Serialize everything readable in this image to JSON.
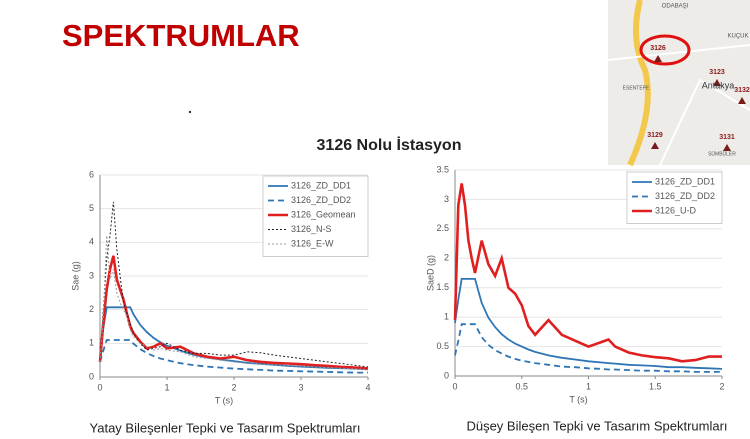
{
  "slide_title": "SPEKTRUMLAR",
  "station_title": "3126 Nolu İstasyon",
  "captions": [
    "Yatay Bileşenler Tepki ve Tasarım Spektrumları",
    "Düşey Bileşen Tepki ve Tasarım Spektrumları"
  ],
  "map": {
    "labels": [
      "ODABAŞI",
      "KUÇUK",
      "3126",
      "3123",
      "Antakya",
      "3132",
      "ESENTEPE",
      "3129",
      "3131",
      "SÜMBÜLER"
    ]
  },
  "chart_data": [
    {
      "type": "line",
      "xlabel": "T (s)",
      "ylabel": "Sae (g)",
      "xlim": [
        0,
        4
      ],
      "xticks": [
        0,
        1,
        2,
        3,
        4
      ],
      "ylim": [
        0,
        6
      ],
      "yticks": [
        0,
        1,
        2,
        3,
        4,
        5,
        6
      ],
      "grid": true,
      "legend": "upper right",
      "x": [
        0,
        0.05,
        0.1,
        0.15,
        0.2,
        0.25,
        0.3,
        0.35,
        0.4,
        0.45,
        0.5,
        0.6,
        0.7,
        0.8,
        0.9,
        1.0,
        1.2,
        1.4,
        1.6,
        1.8,
        2.0,
        2.2,
        2.4,
        2.6,
        2.8,
        3.0,
        3.2,
        3.4,
        3.6,
        3.8,
        4.0
      ],
      "series": [
        {
          "name": "3126_ZD_DD1",
          "color": "#2e75b6",
          "line_style": "solid",
          "values": [
            0.83,
            1.45,
            2.07,
            2.07,
            2.07,
            2.07,
            2.07,
            2.07,
            2.07,
            2.07,
            1.86,
            1.55,
            1.33,
            1.16,
            1.03,
            0.93,
            0.78,
            0.66,
            0.58,
            0.52,
            0.47,
            0.42,
            0.39,
            0.36,
            0.33,
            0.31,
            0.29,
            0.27,
            0.26,
            0.25,
            0.23
          ]
        },
        {
          "name": "3126_ZD_DD2",
          "color": "#2e75b6",
          "line_style": "dashed",
          "values": [
            0.45,
            0.78,
            1.1,
            1.1,
            1.1,
            1.1,
            1.1,
            1.1,
            1.1,
            1.1,
            0.99,
            0.83,
            0.71,
            0.62,
            0.55,
            0.5,
            0.41,
            0.35,
            0.31,
            0.28,
            0.25,
            0.23,
            0.21,
            0.19,
            0.18,
            0.17,
            0.16,
            0.15,
            0.14,
            0.13,
            0.13
          ]
        },
        {
          "name": "3126_Geomean",
          "color": "#e02020",
          "line_style": "thick",
          "values": [
            0.45,
            1.6,
            2.6,
            3.2,
            3.6,
            2.9,
            2.6,
            2.3,
            1.9,
            1.5,
            1.3,
            1.05,
            0.85,
            0.9,
            1.0,
            0.85,
            0.9,
            0.7,
            0.6,
            0.55,
            0.6,
            0.5,
            0.45,
            0.42,
            0.4,
            0.38,
            0.35,
            0.33,
            0.3,
            0.28,
            0.25
          ]
        },
        {
          "name": "3126_N-S",
          "color": "#222222",
          "line_style": "dotted",
          "values": [
            0.45,
            2.0,
            3.5,
            4.2,
            5.2,
            3.8,
            3.0,
            2.2,
            1.9,
            1.6,
            1.3,
            1.0,
            0.8,
            0.85,
            0.9,
            1.0,
            0.8,
            0.7,
            0.7,
            0.65,
            0.65,
            0.75,
            0.72,
            0.65,
            0.6,
            0.55,
            0.5,
            0.45,
            0.4,
            0.35,
            0.3
          ]
        },
        {
          "name": "3126_E-W",
          "color": "#999999",
          "line_style": "dotted",
          "values": [
            0.45,
            1.8,
            4.2,
            2.9,
            3.2,
            2.5,
            2.2,
            2.0,
            1.8,
            1.4,
            1.2,
            1.0,
            0.9,
            0.8,
            0.85,
            0.8,
            0.75,
            0.6,
            0.55,
            0.5,
            0.45,
            0.4,
            0.38,
            0.36,
            0.34,
            0.32,
            0.3,
            0.28,
            0.26,
            0.24,
            0.22
          ]
        }
      ]
    },
    {
      "type": "line",
      "xlabel": "T (s)",
      "ylabel": "SaeD (g)",
      "xlim": [
        0,
        2
      ],
      "xticks": [
        0,
        0.5,
        1,
        1.5,
        2
      ],
      "ylim": [
        0,
        3.5
      ],
      "yticks": [
        0,
        0.5,
        1,
        1.5,
        2,
        2.5,
        3,
        3.5
      ],
      "grid": true,
      "legend": "upper right",
      "x": [
        0,
        0.025,
        0.05,
        0.075,
        0.1,
        0.125,
        0.15,
        0.2,
        0.25,
        0.3,
        0.35,
        0.4,
        0.45,
        0.5,
        0.55,
        0.6,
        0.7,
        0.8,
        0.9,
        1.0,
        1.1,
        1.15,
        1.2,
        1.3,
        1.4,
        1.5,
        1.6,
        1.7,
        1.8,
        1.9,
        2.0
      ],
      "series": [
        {
          "name": "3126_ZD_DD1",
          "color": "#2e75b6",
          "line_style": "solid",
          "values": [
            0.9,
            1.3,
            1.65,
            1.65,
            1.65,
            1.65,
            1.65,
            1.24,
            0.99,
            0.83,
            0.71,
            0.62,
            0.55,
            0.5,
            0.45,
            0.41,
            0.35,
            0.31,
            0.28,
            0.25,
            0.23,
            0.22,
            0.21,
            0.19,
            0.18,
            0.17,
            0.15,
            0.15,
            0.14,
            0.13,
            0.12
          ]
        },
        {
          "name": "3126_ZD_DD2",
          "color": "#2e75b6",
          "line_style": "dashed",
          "values": [
            0.35,
            0.6,
            0.88,
            0.88,
            0.88,
            0.88,
            0.88,
            0.66,
            0.53,
            0.44,
            0.38,
            0.33,
            0.29,
            0.26,
            0.24,
            0.22,
            0.19,
            0.16,
            0.15,
            0.13,
            0.12,
            0.11,
            0.11,
            0.1,
            0.09,
            0.09,
            0.08,
            0.08,
            0.07,
            0.07,
            0.07
          ]
        },
        {
          "name": "3126_U-D",
          "color": "#e02020",
          "line_style": "thick",
          "values": [
            0.95,
            2.9,
            3.27,
            2.9,
            2.3,
            2.0,
            1.75,
            2.3,
            1.9,
            1.7,
            2.0,
            1.5,
            1.4,
            1.2,
            0.85,
            0.7,
            0.95,
            0.7,
            0.6,
            0.5,
            0.58,
            0.62,
            0.5,
            0.4,
            0.35,
            0.32,
            0.3,
            0.25,
            0.27,
            0.33,
            0.33
          ]
        }
      ]
    }
  ]
}
